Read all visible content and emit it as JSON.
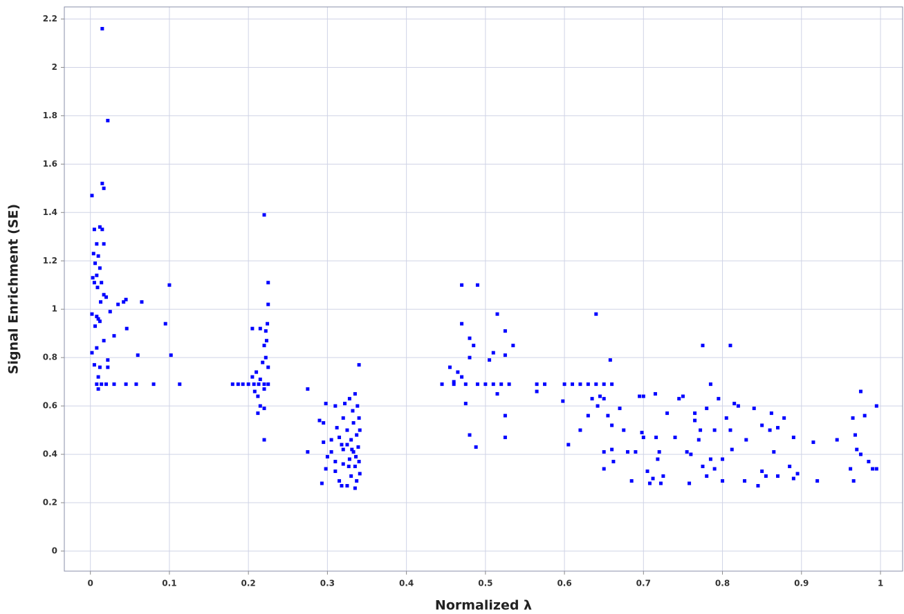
{
  "chart_data": {
    "type": "scatter",
    "xlabel": "Normalized λ",
    "ylabel": "Signal Enrichment (SE)",
    "color": "#0000ff",
    "grid": true,
    "xlim": [
      -0.033,
      1.028
    ],
    "ylim": [
      -0.083,
      2.25
    ],
    "xticks": [
      0,
      0.1,
      0.2,
      0.3,
      0.4,
      0.5,
      0.6,
      0.7,
      0.8,
      0.9,
      1
    ],
    "yticks": [
      0,
      0.2,
      0.4,
      0.6,
      0.8,
      1,
      1.2,
      1.4,
      1.6,
      1.8,
      2,
      2.2
    ],
    "x": [
      0.002,
      0.005,
      0.012,
      0.015,
      0.008,
      0.017,
      0.004,
      0.01,
      0.006,
      0.012,
      0.008,
      0.003,
      0.005,
      0.014,
      0.009,
      0.017,
      0.02,
      0.013,
      0.002,
      0.008,
      0.012,
      0.006,
      0.01,
      0.017,
      0.008,
      0.002,
      0.012,
      0.005,
      0.01,
      0.008,
      0.01,
      0.014,
      0.02,
      0.03,
      0.045,
      0.058,
      0.08,
      0.113,
      0.015,
      0.022,
      0.015,
      0.017,
      0.025,
      0.022,
      0.022,
      0.03,
      0.035,
      0.042,
      0.045,
      0.046,
      0.065,
      0.06,
      0.095,
      0.1,
      0.102,
      0.18,
      0.187,
      0.193,
      0.2,
      0.207,
      0.213,
      0.22,
      0.225,
      0.22,
      0.225,
      0.225,
      0.224,
      0.222,
      0.215,
      0.223,
      0.22,
      0.205,
      0.222,
      0.218,
      0.225,
      0.21,
      0.205,
      0.215,
      0.22,
      0.212,
      0.208,
      0.215,
      0.212,
      0.22,
      0.22,
      0.275,
      0.275,
      0.29,
      0.295,
      0.293,
      0.295,
      0.298,
      0.3,
      0.298,
      0.305,
      0.31,
      0.31,
      0.31,
      0.315,
      0.315,
      0.318,
      0.32,
      0.32,
      0.32,
      0.322,
      0.325,
      0.325,
      0.325,
      0.328,
      0.328,
      0.33,
      0.33,
      0.332,
      0.333,
      0.333,
      0.335,
      0.335,
      0.335,
      0.337,
      0.337,
      0.338,
      0.339,
      0.34,
      0.34,
      0.34,
      0.341,
      0.341,
      0.312,
      0.305,
      0.318,
      0.327,
      0.336,
      0.331,
      0.445,
      0.46,
      0.475,
      0.49,
      0.5,
      0.51,
      0.52,
      0.53,
      0.47,
      0.49,
      0.47,
      0.48,
      0.485,
      0.515,
      0.525,
      0.535,
      0.51,
      0.505,
      0.525,
      0.48,
      0.455,
      0.465,
      0.47,
      0.46,
      0.475,
      0.515,
      0.525,
      0.48,
      0.525,
      0.488,
      0.565,
      0.575,
      0.6,
      0.61,
      0.62,
      0.63,
      0.64,
      0.65,
      0.66,
      0.565,
      0.64,
      0.658,
      0.598,
      0.635,
      0.645,
      0.65,
      0.642,
      0.63,
      0.655,
      0.66,
      0.62,
      0.605,
      0.65,
      0.66,
      0.662,
      0.65,
      0.67,
      0.675,
      0.68,
      0.69,
      0.685,
      0.695,
      0.7,
      0.698,
      0.7,
      0.705,
      0.708,
      0.712,
      0.715,
      0.716,
      0.72,
      0.718,
      0.722,
      0.725,
      0.73,
      0.74,
      0.745,
      0.75,
      0.755,
      0.76,
      0.758,
      0.765,
      0.765,
      0.77,
      0.772,
      0.775,
      0.775,
      0.78,
      0.78,
      0.785,
      0.785,
      0.79,
      0.79,
      0.795,
      0.8,
      0.8,
      0.805,
      0.81,
      0.81,
      0.812,
      0.815,
      0.82,
      0.83,
      0.828,
      0.84,
      0.845,
      0.85,
      0.85,
      0.855,
      0.86,
      0.862,
      0.865,
      0.87,
      0.87,
      0.878,
      0.885,
      0.89,
      0.89,
      0.895,
      0.915,
      0.92,
      0.945,
      0.962,
      0.965,
      0.966,
      0.968,
      0.97,
      0.975,
      0.975,
      0.98,
      0.985,
      0.99,
      0.995,
      0.995
    ],
    "values": [
      1.47,
      1.33,
      1.34,
      1.33,
      1.27,
      1.27,
      1.23,
      1.22,
      1.19,
      1.17,
      1.14,
      1.13,
      1.11,
      1.11,
      1.09,
      1.06,
      1.05,
      1.03,
      0.98,
      0.97,
      0.95,
      0.93,
      0.96,
      0.87,
      0.84,
      0.82,
      0.76,
      0.77,
      0.72,
      0.69,
      0.67,
      0.69,
      0.69,
      0.69,
      0.69,
      0.69,
      0.69,
      0.69,
      2.16,
      1.78,
      1.52,
      1.5,
      0.99,
      0.79,
      0.76,
      0.89,
      1.02,
      1.03,
      1.04,
      0.92,
      1.03,
      0.81,
      0.94,
      1.1,
      0.81,
      0.69,
      0.69,
      0.69,
      0.69,
      0.69,
      0.69,
      0.69,
      0.69,
      1.39,
      1.11,
      1.02,
      0.94,
      0.91,
      0.92,
      0.87,
      0.85,
      0.92,
      0.8,
      0.78,
      0.76,
      0.74,
      0.72,
      0.71,
      0.67,
      0.64,
      0.66,
      0.6,
      0.57,
      0.59,
      0.46,
      0.67,
      0.41,
      0.54,
      0.53,
      0.28,
      0.45,
      0.61,
      0.39,
      0.34,
      0.41,
      0.6,
      0.37,
      0.33,
      0.47,
      0.29,
      0.27,
      0.55,
      0.42,
      0.36,
      0.61,
      0.5,
      0.44,
      0.27,
      0.63,
      0.38,
      0.46,
      0.31,
      0.58,
      0.53,
      0.41,
      0.65,
      0.35,
      0.26,
      0.48,
      0.29,
      0.6,
      0.43,
      0.55,
      0.37,
      0.77,
      0.5,
      0.32,
      0.51,
      0.46,
      0.44,
      0.35,
      0.39,
      0.42,
      0.69,
      0.69,
      0.69,
      0.69,
      0.69,
      0.69,
      0.69,
      0.69,
      1.1,
      1.1,
      0.94,
      0.88,
      0.85,
      0.98,
      0.91,
      0.85,
      0.82,
      0.79,
      0.81,
      0.8,
      0.76,
      0.74,
      0.72,
      0.7,
      0.61,
      0.65,
      0.56,
      0.48,
      0.47,
      0.43,
      0.69,
      0.69,
      0.69,
      0.69,
      0.69,
      0.69,
      0.69,
      0.69,
      0.69,
      0.66,
      0.98,
      0.79,
      0.62,
      0.63,
      0.64,
      0.63,
      0.6,
      0.56,
      0.56,
      0.52,
      0.5,
      0.44,
      0.41,
      0.42,
      0.37,
      0.34,
      0.59,
      0.5,
      0.41,
      0.41,
      0.29,
      0.64,
      0.64,
      0.49,
      0.47,
      0.33,
      0.28,
      0.3,
      0.65,
      0.47,
      0.41,
      0.38,
      0.28,
      0.31,
      0.57,
      0.47,
      0.63,
      0.64,
      0.41,
      0.4,
      0.28,
      0.57,
      0.54,
      0.46,
      0.5,
      0.85,
      0.35,
      0.59,
      0.31,
      0.69,
      0.38,
      0.5,
      0.34,
      0.63,
      0.38,
      0.29,
      0.55,
      0.85,
      0.5,
      0.42,
      0.61,
      0.6,
      0.46,
      0.29,
      0.59,
      0.27,
      0.52,
      0.33,
      0.31,
      0.5,
      0.57,
      0.41,
      0.31,
      0.51,
      0.55,
      0.35,
      0.47,
      0.3,
      0.32,
      0.45,
      0.29,
      0.46,
      0.34,
      0.55,
      0.29,
      0.48,
      0.42,
      0.66,
      0.4,
      0.56,
      0.37,
      0.34,
      0.6,
      0.34
    ]
  }
}
